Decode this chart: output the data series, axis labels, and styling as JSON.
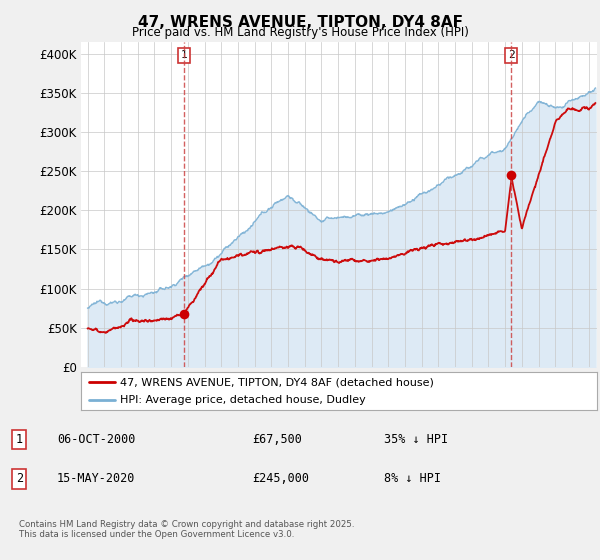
{
  "title": "47, WRENS AVENUE, TIPTON, DY4 8AF",
  "subtitle": "Price paid vs. HM Land Registry's House Price Index (HPI)",
  "ylabel_ticks": [
    "£0",
    "£50K",
    "£100K",
    "£150K",
    "£200K",
    "£250K",
    "£300K",
    "£350K",
    "£400K"
  ],
  "ytick_values": [
    0,
    50000,
    100000,
    150000,
    200000,
    250000,
    300000,
    350000,
    400000
  ],
  "ylim": [
    0,
    415000
  ],
  "xlim_start": 1994.6,
  "xlim_end": 2025.5,
  "transaction1_date": 2000.77,
  "transaction1_price": 67500,
  "transaction2_date": 2020.37,
  "transaction2_price": 245000,
  "legend_line1": "47, WRENS AVENUE, TIPTON, DY4 8AF (detached house)",
  "legend_line2": "HPI: Average price, detached house, Dudley",
  "table_row1": [
    "1",
    "06-OCT-2000",
    "£67,500",
    "35% ↓ HPI"
  ],
  "table_row2": [
    "2",
    "15-MAY-2020",
    "£245,000",
    "8% ↓ HPI"
  ],
  "footer": "Contains HM Land Registry data © Crown copyright and database right 2025.\nThis data is licensed under the Open Government Licence v3.0.",
  "line_color_red": "#cc0000",
  "line_color_blue": "#7ab0d4",
  "plot_fill_color": "#e8f0f8",
  "marker_color": "#cc0000",
  "background_color": "#f0f0f0",
  "plot_bg": "#ffffff"
}
